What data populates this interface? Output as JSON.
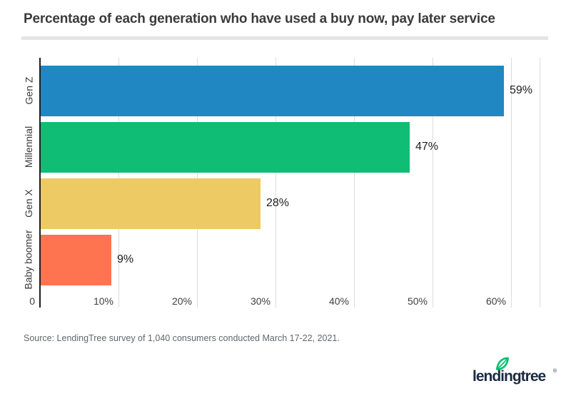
{
  "title": "Percentage of each generation who have used a buy now, pay later service",
  "source": "Source: LendingTree survey of 1,040 consumers conducted March 17-22, 2021.",
  "logo": {
    "wordmark": "lendingtree",
    "registered_mark": "®",
    "leaf_color": "#00c06e",
    "wordmark_color": "#1b2a44"
  },
  "colors": {
    "background": "#ffffff",
    "title_text": "#3b3b3b",
    "axis_line": "#1f1f1f",
    "gridline": "#dcdcdc",
    "divider": "#e4e4e4",
    "source_text": "#63676b"
  },
  "chart_data": {
    "type": "bar",
    "orientation": "horizontal",
    "title": "Percentage of each generation who have used a buy now, pay later service",
    "categories": [
      "Gen Z",
      "Millennial",
      "Gen X",
      "Baby boomer"
    ],
    "values": [
      59,
      47,
      28,
      9
    ],
    "value_labels": [
      "59%",
      "47%",
      "28%",
      "9%"
    ],
    "bar_colors": [
      "#2187c2",
      "#10bd74",
      "#eeca64",
      "#ff7450"
    ],
    "x_ticks": [
      "0",
      "10%",
      "20%",
      "30%",
      "40%",
      "50%",
      "60%"
    ],
    "x_tick_values": [
      0,
      10,
      20,
      30,
      40,
      50,
      60
    ],
    "xlim": [
      0,
      63.8
    ],
    "xlabel": "",
    "ylabel": "",
    "grid": "vertical",
    "legend": "none"
  }
}
